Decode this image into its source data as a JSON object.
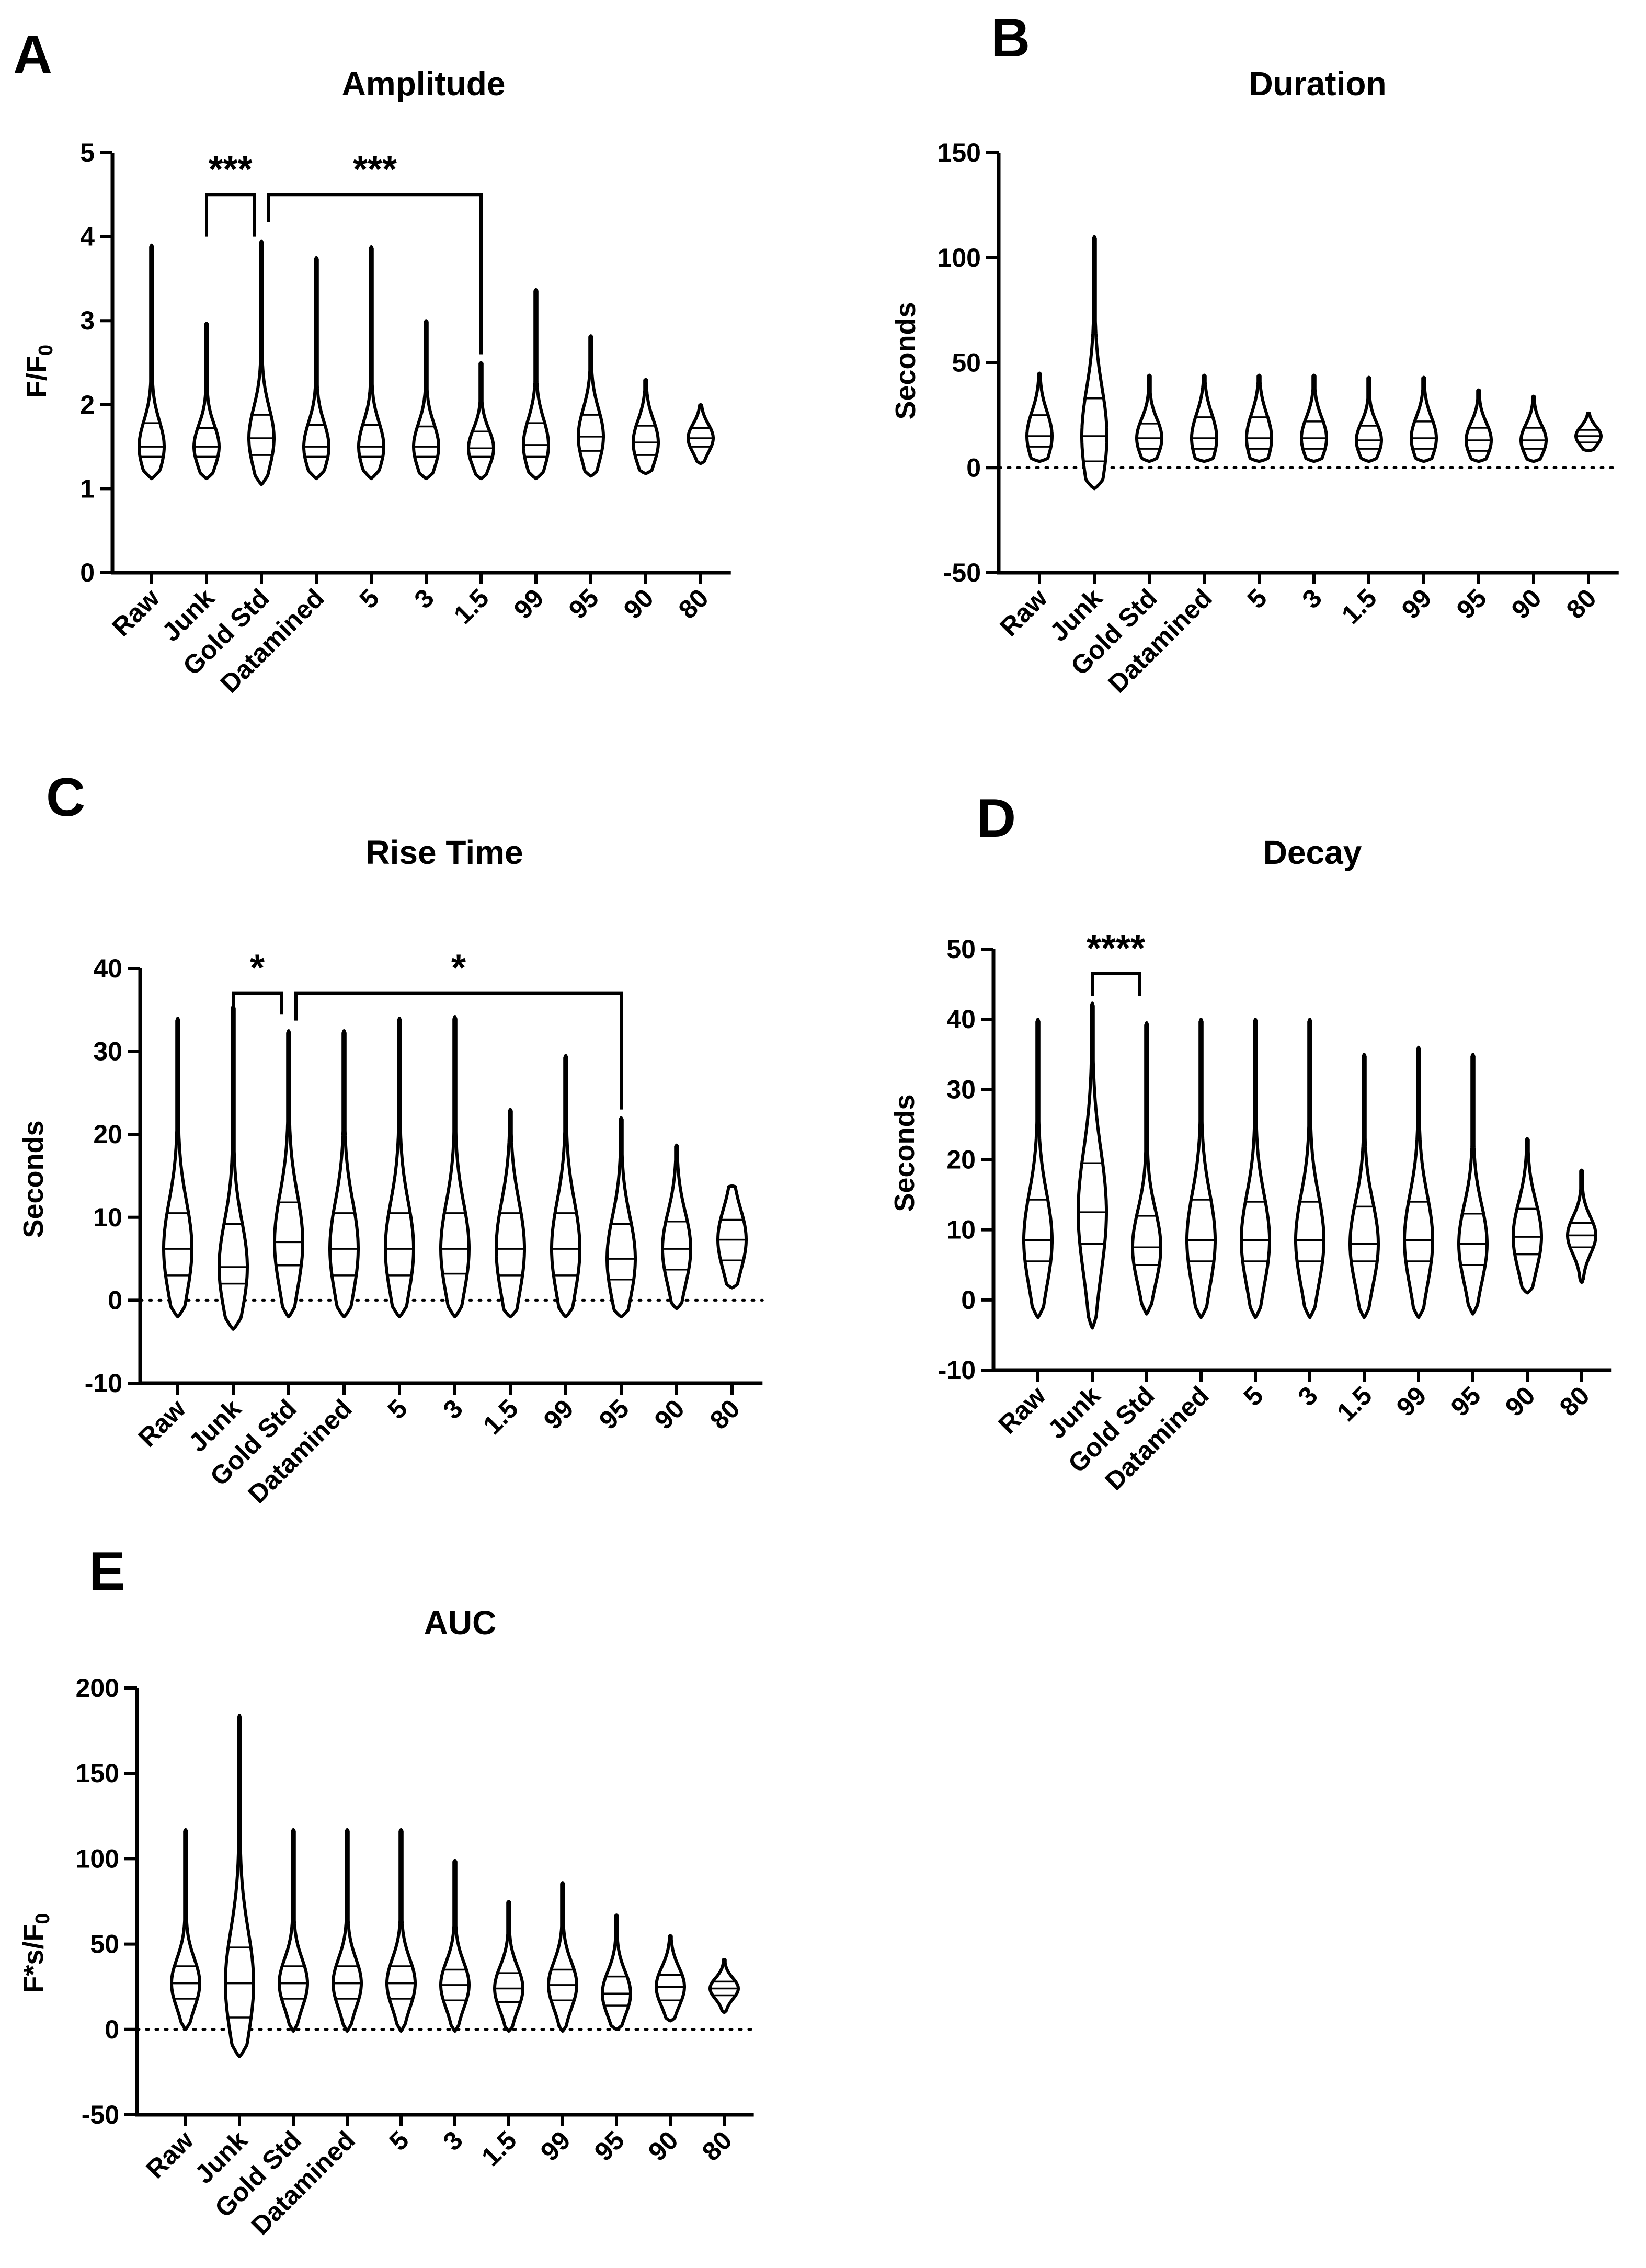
{
  "chart_data": [
    {
      "panel": "A",
      "type": "violin",
      "title": "Amplitude",
      "ylabel": "F/F0",
      "ylabel_main": "F/F",
      "ylabel_sub": "0",
      "ylim": [
        0,
        5
      ],
      "yticks": [
        0,
        1,
        2,
        3,
        4,
        5
      ],
      "zero_line": false,
      "categories": [
        "Raw",
        "Junk",
        "Gold Std",
        "Datamined",
        "5",
        "3",
        "1.5",
        "99",
        "95",
        "90",
        "80"
      ],
      "series": [
        {
          "name": "Raw",
          "min": 1.12,
          "max": 3.9,
          "q1": 1.38,
          "median": 1.5,
          "q3": 1.78
        },
        {
          "name": "Junk",
          "min": 1.12,
          "max": 2.97,
          "q1": 1.38,
          "median": 1.5,
          "q3": 1.72
        },
        {
          "name": "Gold Std",
          "min": 1.05,
          "max": 3.95,
          "q1": 1.4,
          "median": 1.6,
          "q3": 1.88
        },
        {
          "name": "Datamined",
          "min": 1.12,
          "max": 3.75,
          "q1": 1.38,
          "median": 1.5,
          "q3": 1.76
        },
        {
          "name": "5",
          "min": 1.12,
          "max": 3.88,
          "q1": 1.38,
          "median": 1.5,
          "q3": 1.76
        },
        {
          "name": "3",
          "min": 1.12,
          "max": 3.0,
          "q1": 1.38,
          "median": 1.5,
          "q3": 1.74
        },
        {
          "name": "1.5",
          "min": 1.12,
          "max": 2.5,
          "q1": 1.38,
          "median": 1.48,
          "q3": 1.68
        },
        {
          "name": "99",
          "min": 1.12,
          "max": 3.37,
          "q1": 1.38,
          "median": 1.52,
          "q3": 1.78
        },
        {
          "name": "95",
          "min": 1.15,
          "max": 2.82,
          "q1": 1.45,
          "median": 1.62,
          "q3": 1.88
        },
        {
          "name": "90",
          "min": 1.18,
          "max": 2.3,
          "q1": 1.4,
          "median": 1.55,
          "q3": 1.75
        },
        {
          "name": "80",
          "min": 1.3,
          "max": 2.0,
          "q1": 1.5,
          "median": 1.6,
          "q3": 1.72
        }
      ],
      "annotations": [
        {
          "label": "***",
          "from": "Junk",
          "to": "Gold Std",
          "y": 4.5,
          "bottom_y": 4.0
        },
        {
          "label": "***",
          "from": "Gold Std",
          "to": "1.5",
          "y": 4.5,
          "bottom_y": 2.6
        }
      ]
    },
    {
      "panel": "B",
      "type": "violin",
      "title": "Duration",
      "ylabel": "Seconds",
      "ylim": [
        -50,
        150
      ],
      "yticks": [
        -50,
        0,
        50,
        100,
        150
      ],
      "zero_line": true,
      "categories": [
        "Raw",
        "Junk",
        "Gold Std",
        "Datamined",
        "5",
        "3",
        "1.5",
        "99",
        "95",
        "90",
        "80"
      ],
      "series": [
        {
          "name": "Raw",
          "min": 3,
          "max": 45,
          "q1": 10,
          "median": 15,
          "q3": 25
        },
        {
          "name": "Junk",
          "min": -10,
          "max": 110,
          "q1": 3,
          "median": 15,
          "q3": 33
        },
        {
          "name": "Gold Std",
          "min": 3,
          "max": 44,
          "q1": 9,
          "median": 14,
          "q3": 21
        },
        {
          "name": "Datamined",
          "min": 3,
          "max": 44,
          "q1": 9,
          "median": 14,
          "q3": 24
        },
        {
          "name": "5",
          "min": 3,
          "max": 44,
          "q1": 9,
          "median": 14,
          "q3": 24
        },
        {
          "name": "3",
          "min": 3,
          "max": 44,
          "q1": 9,
          "median": 14,
          "q3": 22
        },
        {
          "name": "1.5",
          "min": 3,
          "max": 43,
          "q1": 9,
          "median": 13,
          "q3": 20
        },
        {
          "name": "99",
          "min": 3,
          "max": 43,
          "q1": 9,
          "median": 14,
          "q3": 22
        },
        {
          "name": "95",
          "min": 3,
          "max": 37,
          "q1": 8,
          "median": 13,
          "q3": 19
        },
        {
          "name": "90",
          "min": 3,
          "max": 34,
          "q1": 9,
          "median": 13,
          "q3": 19
        },
        {
          "name": "80",
          "min": 8,
          "max": 26,
          "q1": 12,
          "median": 15,
          "q3": 18
        }
      ],
      "annotations": []
    },
    {
      "panel": "C",
      "type": "violin",
      "title": "Rise Time",
      "ylabel": "Seconds",
      "ylim": [
        -10,
        40
      ],
      "yticks": [
        -10,
        0,
        10,
        20,
        30,
        40
      ],
      "zero_line": true,
      "categories": [
        "Raw",
        "Junk",
        "Gold Std",
        "Datamined",
        "5",
        "3",
        "1.5",
        "99",
        "95",
        "90",
        "80"
      ],
      "series": [
        {
          "name": "Raw",
          "min": -2,
          "max": 34,
          "q1": 3,
          "median": 6.2,
          "q3": 10.5
        },
        {
          "name": "Junk",
          "min": -3.5,
          "max": 35.5,
          "q1": 2,
          "median": 4,
          "q3": 9.2
        },
        {
          "name": "Gold Std",
          "min": -2,
          "max": 32.5,
          "q1": 4.2,
          "median": 7,
          "q3": 11.8
        },
        {
          "name": "Datamined",
          "min": -2,
          "max": 32.5,
          "q1": 3,
          "median": 6.2,
          "q3": 10.5
        },
        {
          "name": "5",
          "min": -2,
          "max": 34,
          "q1": 3,
          "median": 6.2,
          "q3": 10.5
        },
        {
          "name": "3",
          "min": -2,
          "max": 34.2,
          "q1": 3.2,
          "median": 6.2,
          "q3": 10.5
        },
        {
          "name": "1.5",
          "min": -2,
          "max": 23,
          "q1": 3,
          "median": 6.2,
          "q3": 10.5
        },
        {
          "name": "99",
          "min": -2,
          "max": 29.5,
          "q1": 3,
          "median": 6.2,
          "q3": 10.5
        },
        {
          "name": "95",
          "min": -2,
          "max": 22,
          "q1": 2.5,
          "median": 5,
          "q3": 9.2
        },
        {
          "name": "90",
          "min": -1,
          "max": 18.7,
          "q1": 3.7,
          "median": 6.2,
          "q3": 9.5
        },
        {
          "name": "80",
          "min": 1.5,
          "max": 13.8,
          "q1": 4.8,
          "median": 7.3,
          "q3": 9.7
        }
      ],
      "annotations": [
        {
          "label": "*",
          "from": "Junk",
          "to": "Gold Std",
          "y": 37,
          "bottom_y": 34.5
        },
        {
          "label": "*",
          "from": "Gold Std",
          "to": "95",
          "y": 37,
          "bottom_y": 23
        }
      ]
    },
    {
      "panel": "D",
      "type": "violin",
      "title": "Decay",
      "ylabel": "Seconds",
      "ylim": [
        -10,
        50
      ],
      "yticks": [
        -10,
        0,
        10,
        20,
        30,
        40,
        50
      ],
      "zero_line": false,
      "categories": [
        "Raw",
        "Junk",
        "Gold Std",
        "Datamined",
        "5",
        "3",
        "1.5",
        "99",
        "95",
        "90",
        "80"
      ],
      "series": [
        {
          "name": "Raw",
          "min": -2.5,
          "max": 40,
          "q1": 5.5,
          "median": 8.5,
          "q3": 14.3
        },
        {
          "name": "Junk",
          "min": -4,
          "max": 42.3,
          "q1": 8,
          "median": 12.5,
          "q3": 19.5
        },
        {
          "name": "Gold Std",
          "min": -2,
          "max": 39.5,
          "q1": 5,
          "median": 7.5,
          "q3": 12
        },
        {
          "name": "Datamined",
          "min": -2.5,
          "max": 40,
          "q1": 5.5,
          "median": 8.5,
          "q3": 14.3
        },
        {
          "name": "5",
          "min": -2.5,
          "max": 40,
          "q1": 5.5,
          "median": 8.5,
          "q3": 14
        },
        {
          "name": "3",
          "min": -2.5,
          "max": 40,
          "q1": 5.5,
          "median": 8.5,
          "q3": 14
        },
        {
          "name": "1.5",
          "min": -2.5,
          "max": 35,
          "q1": 5.5,
          "median": 8,
          "q3": 13.3
        },
        {
          "name": "99",
          "min": -2.5,
          "max": 36,
          "q1": 5.5,
          "median": 8.5,
          "q3": 14
        },
        {
          "name": "95",
          "min": -2,
          "max": 35,
          "q1": 5,
          "median": 8,
          "q3": 12.3
        },
        {
          "name": "90",
          "min": 1,
          "max": 23,
          "q1": 6.5,
          "median": 9,
          "q3": 13
        },
        {
          "name": "80",
          "min": 2.5,
          "max": 18.5,
          "q1": 7.5,
          "median": 9.2,
          "q3": 11
        }
      ],
      "annotations": [
        {
          "label": "****",
          "from": "Junk",
          "to": "Gold Std",
          "y": 46.5,
          "bottom_y": 43.3
        }
      ]
    },
    {
      "panel": "E",
      "type": "violin",
      "title": "AUC",
      "ylabel": "F*s/F0",
      "ylabel_main": "F*s/F",
      "ylabel_sub": "0",
      "ylim": [
        -50,
        200
      ],
      "yticks": [
        -50,
        0,
        50,
        100,
        150,
        200
      ],
      "zero_line": true,
      "categories": [
        "Raw",
        "Junk",
        "Gold Std",
        "Datamined",
        "5",
        "3",
        "1.5",
        "99",
        "95",
        "90",
        "80"
      ],
      "series": [
        {
          "name": "Raw",
          "min": 0,
          "max": 117,
          "q1": 18,
          "median": 27,
          "q3": 37
        },
        {
          "name": "Junk",
          "min": -16,
          "max": 184,
          "q1": 7,
          "median": 27,
          "q3": 48
        },
        {
          "name": "Gold Std",
          "min": -1,
          "max": 117,
          "q1": 18,
          "median": 27,
          "q3": 37
        },
        {
          "name": "Datamined",
          "min": -1,
          "max": 117,
          "q1": 18,
          "median": 27,
          "q3": 37
        },
        {
          "name": "5",
          "min": -1,
          "max": 117,
          "q1": 18,
          "median": 27,
          "q3": 37
        },
        {
          "name": "3",
          "min": -1,
          "max": 99,
          "q1": 17,
          "median": 26,
          "q3": 35
        },
        {
          "name": "1.5",
          "min": -1,
          "max": 75,
          "q1": 16,
          "median": 24,
          "q3": 33
        },
        {
          "name": "99",
          "min": -1,
          "max": 86,
          "q1": 17,
          "median": 26,
          "q3": 35
        },
        {
          "name": "95",
          "min": 0,
          "max": 67,
          "q1": 14,
          "median": 21,
          "q3": 31
        },
        {
          "name": "90",
          "min": 5,
          "max": 55,
          "q1": 17,
          "median": 25,
          "q3": 32
        },
        {
          "name": "80",
          "min": 10,
          "max": 41,
          "q1": 20,
          "median": 24,
          "q3": 28
        }
      ],
      "annotations": []
    }
  ]
}
